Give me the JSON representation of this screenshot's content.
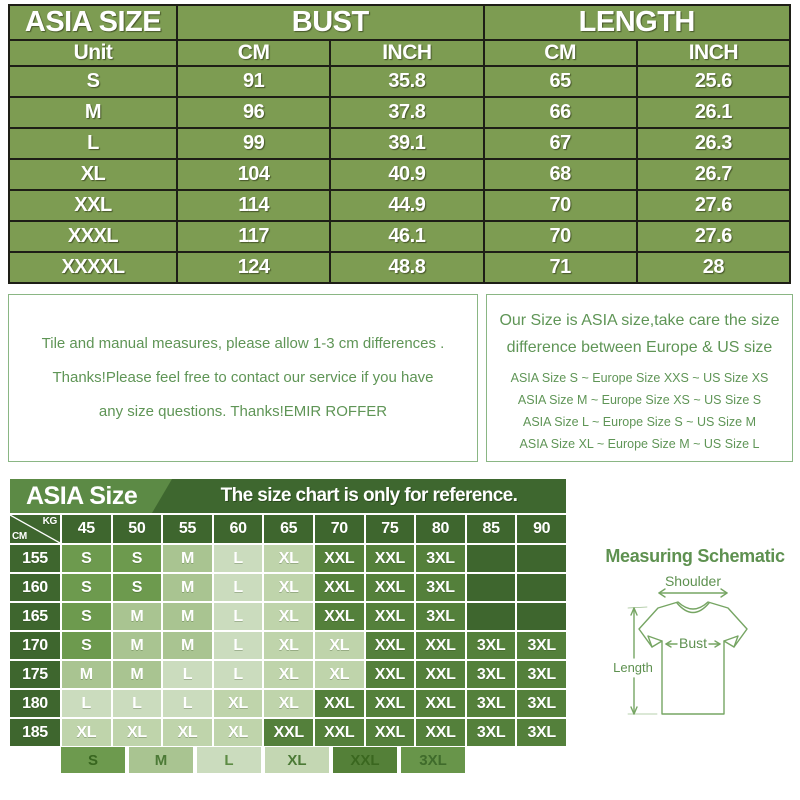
{
  "top_table": {
    "bg": "#7d9c52",
    "header": [
      "ASIA SIZE",
      "BUST",
      "LENGTH"
    ],
    "subheader": [
      "Unit",
      "CM",
      "INCH",
      "CM",
      "INCH"
    ],
    "rows": [
      [
        "S",
        "91",
        "35.8",
        "65",
        "25.6"
      ],
      [
        "M",
        "96",
        "37.8",
        "66",
        "26.1"
      ],
      [
        "L",
        "99",
        "39.1",
        "67",
        "26.3"
      ],
      [
        "XL",
        "104",
        "40.9",
        "68",
        "26.7"
      ],
      [
        "XXL",
        "114",
        "44.9",
        "70",
        "27.6"
      ],
      [
        "XXXL",
        "117",
        "46.1",
        "70",
        "27.6"
      ],
      [
        "XXXXL",
        "124",
        "48.8",
        "71",
        "28"
      ]
    ]
  },
  "notes": {
    "left_lines": [
      "Tile and manual measures, please allow 1-3 cm differences .",
      "Thanks!Please feel free to contact our service if you have",
      "any size questions. Thanks!EMIR ROFFER"
    ],
    "right_title_lines": [
      "Our Size is ASIA size,take care the size",
      "difference between Europe & US size"
    ],
    "right_mapping_lines": [
      "ASIA Size S  ~  Europe Size XXS  ~  US Size XS",
      "ASIA Size M  ~  Europe Size XS  ~  US Size S",
      "ASIA Size L ~  Europe Size S  ~  US Size M",
      "ASIA Size XL ~  Europe Size M  ~  US Size L"
    ]
  },
  "weight_chart": {
    "title": "ASIA Size",
    "subtitle": "The size chart is only for reference.",
    "corner_top": "KG",
    "corner_bottom": "CM",
    "weights": [
      "45",
      "50",
      "55",
      "60",
      "65",
      "70",
      "75",
      "80",
      "85",
      "90"
    ],
    "rows": [
      {
        "height": "155",
        "cells": [
          "S",
          "S",
          "M",
          "L",
          "XL",
          "XXL",
          "XXL",
          "3XL",
          "",
          ""
        ]
      },
      {
        "height": "160",
        "cells": [
          "S",
          "S",
          "M",
          "L",
          "XL",
          "XXL",
          "XXL",
          "3XL",
          "",
          ""
        ]
      },
      {
        "height": "165",
        "cells": [
          "S",
          "M",
          "M",
          "L",
          "XL",
          "XXL",
          "XXL",
          "3XL",
          "",
          ""
        ]
      },
      {
        "height": "170",
        "cells": [
          "S",
          "M",
          "M",
          "L",
          "XL",
          "XL",
          "XXL",
          "XXL",
          "3XL",
          "3XL"
        ]
      },
      {
        "height": "175",
        "cells": [
          "M",
          "M",
          "L",
          "L",
          "XL",
          "XL",
          "XXL",
          "XXL",
          "3XL",
          "3XL"
        ]
      },
      {
        "height": "180",
        "cells": [
          "L",
          "L",
          "L",
          "XL",
          "XL",
          "XXL",
          "XXL",
          "XXL",
          "3XL",
          "3XL"
        ]
      },
      {
        "height": "185",
        "cells": [
          "XL",
          "XL",
          "XL",
          "XL",
          "XXL",
          "XXL",
          "XXL",
          "XXL",
          "3XL",
          "3XL"
        ]
      }
    ],
    "colors": {
      "frame": "#3e662e",
      "title_left_bg": "#5c8a45",
      "title_right_bg": "#3e672f",
      "S": "#6d9a4e",
      "M": "#a9c491",
      "L": "#cbdcbe",
      "XL": "#bfd4ab",
      "XXL": "#54803b",
      "3XL": "#54803b",
      "empty": "#3e662e"
    }
  },
  "legend": {
    "items": [
      {
        "label": "S",
        "bg": "#6d9a4e",
        "fg": "#38661f"
      },
      {
        "label": "M",
        "bg": "#a9c491",
        "fg": "#4c7a36"
      },
      {
        "label": "L",
        "bg": "#cbdcbe",
        "fg": "#5d8c44"
      },
      {
        "label": "XL",
        "bg": "#c4d7b3",
        "fg": "#4c7a36"
      },
      {
        "label": "XXL",
        "bg": "#548038",
        "fg": "#3a671f"
      },
      {
        "label": "3XL",
        "bg": "#68954a",
        "fg": "#3f6b2b"
      }
    ]
  },
  "schematic": {
    "title": "Measuring Schematic",
    "shoulder_label": "Shoulder",
    "bust_label": "Bust",
    "length_label": "Length",
    "stroke_color": "#76a563",
    "text_color": "#5e9150"
  }
}
